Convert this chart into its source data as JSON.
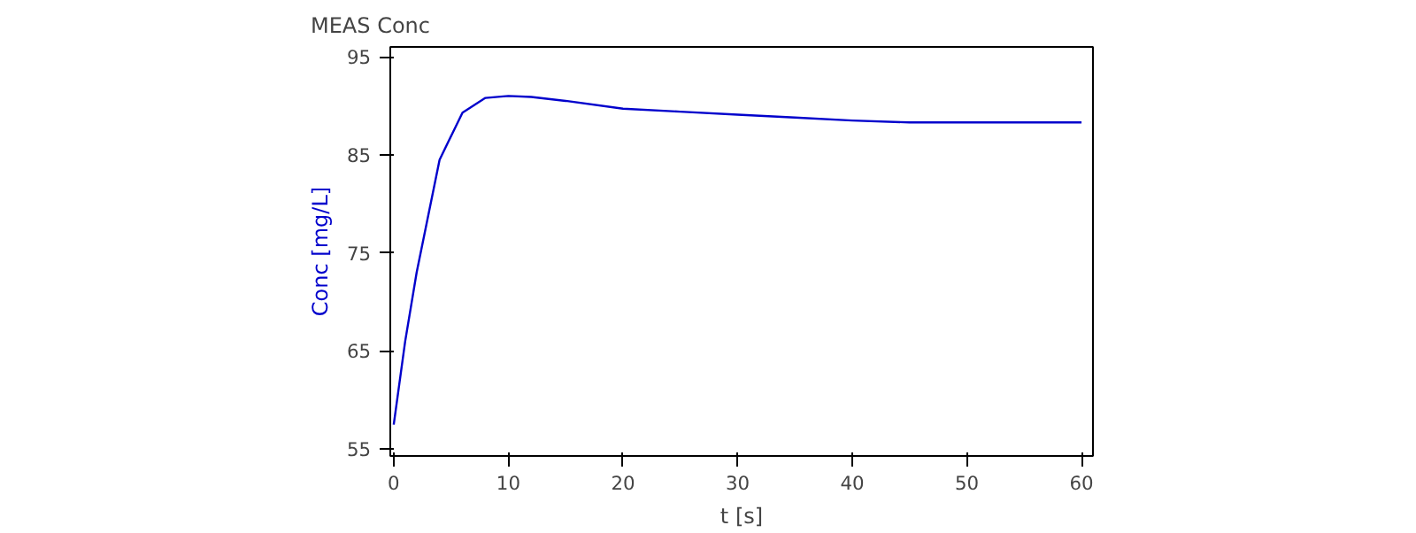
{
  "chart_data": {
    "type": "line",
    "title": "MEAS Conc",
    "xlabel": "t [s]",
    "ylabel": "Conc [mg/L]",
    "x": [
      0,
      1,
      2,
      4,
      6,
      8,
      10,
      12,
      15,
      20,
      25,
      30,
      35,
      40,
      45,
      50,
      60
    ],
    "series": [
      {
        "color": "#0000cc",
        "values": [
          57.5,
          66,
          73,
          84.5,
          89.3,
          90.8,
          91,
          90.9,
          90.5,
          89.7,
          89.4,
          89.1,
          88.8,
          88.5,
          88.3,
          88.3,
          88.3
        ]
      }
    ],
    "xlim": [
      -0.3,
      61
    ],
    "ylim": [
      54.3,
      96
    ],
    "xticks": [
      0,
      10,
      20,
      30,
      40,
      50,
      60
    ],
    "yticks": [
      55,
      65,
      75,
      85,
      95
    ],
    "grid": false,
    "line_style": "solid"
  }
}
